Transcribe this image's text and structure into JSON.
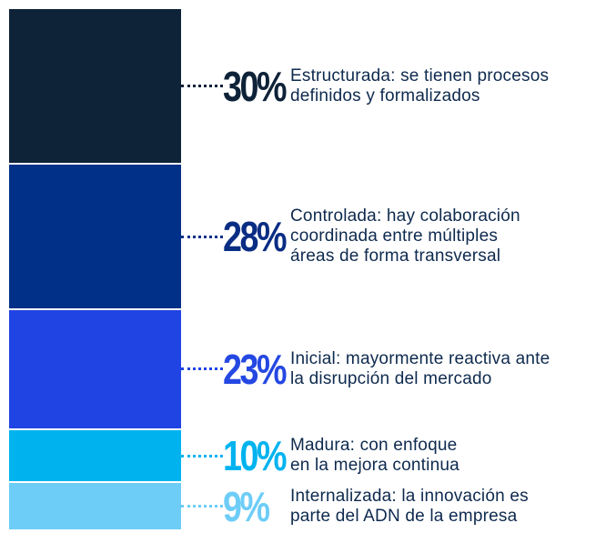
{
  "chart_data": {
    "type": "bar",
    "subtype": "stacked-100",
    "segments": [
      {
        "value": 30,
        "label": "30%",
        "description": [
          "Estructurada: se tienen procesos",
          "definidos y formalizados"
        ],
        "color": "#0e2238",
        "label_color": "#0e2238"
      },
      {
        "value": 28,
        "label": "28%",
        "description": [
          "Controlada: hay colaboración",
          "coordinada entre múltiples",
          "áreas de forma transversal"
        ],
        "color": "#003087",
        "label_color": "#0a2d84"
      },
      {
        "value": 23,
        "label": "23%",
        "description": [
          "Inicial: mayormente reactiva ante",
          "la disrupción del mercado"
        ],
        "color": "#2044e4",
        "label_color": "#2548e2"
      },
      {
        "value": 10,
        "label": "10%",
        "description": [
          "Madura: con enfoque",
          "en la mejora continua"
        ],
        "color": "#00b3ef",
        "label_color": "#00b3ef"
      },
      {
        "value": 9,
        "label": "9%",
        "description": [
          "Internalizada: la innovación es",
          "parte del ADN de la empresa"
        ],
        "color": "#6dcdf7",
        "label_color": "#6dcdf7"
      }
    ]
  }
}
